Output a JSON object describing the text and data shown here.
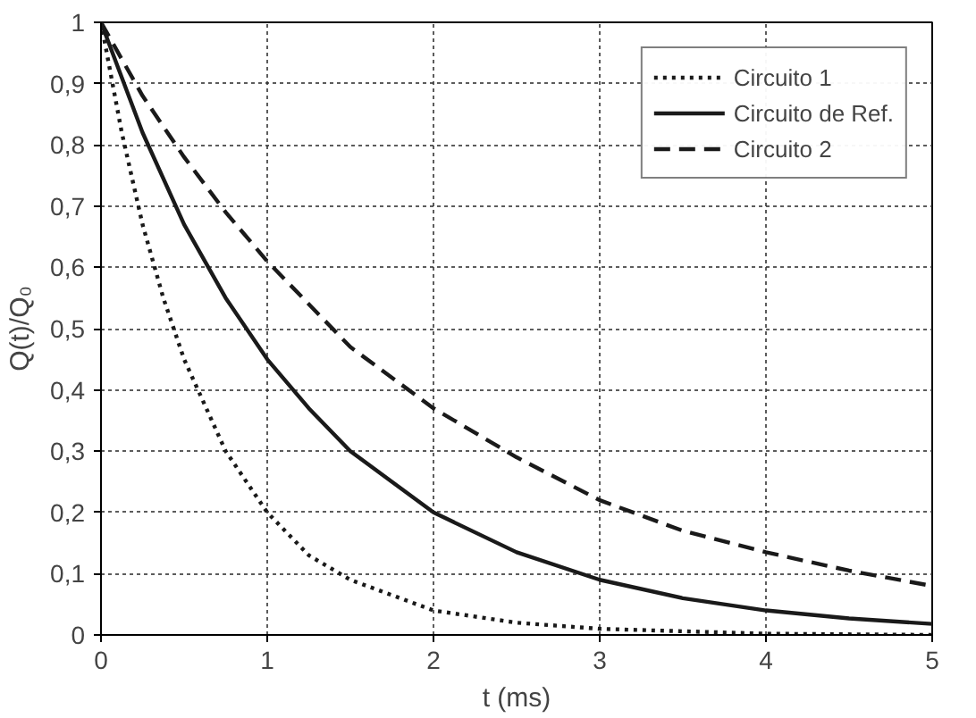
{
  "chart_data": {
    "type": "line",
    "xlabel": "t (ms)",
    "ylabel": "Q(t)/Q₀",
    "xlim": [
      0,
      5
    ],
    "ylim": [
      0,
      1
    ],
    "xticks": [
      0,
      1,
      2,
      3,
      4,
      5
    ],
    "yticks": [
      0,
      {
        "value": 0.1,
        "label": "0,1"
      },
      {
        "value": 0.2,
        "label": "0,2"
      },
      {
        "value": 0.3,
        "label": "0,3"
      },
      {
        "value": 0.4,
        "label": "0,4"
      },
      {
        "value": 0.5,
        "label": "0,5"
      },
      {
        "value": 0.6,
        "label": "0,6"
      },
      {
        "value": 0.7,
        "label": "0,7"
      },
      {
        "value": 0.8,
        "label": "0,8"
      },
      {
        "value": 0.9,
        "label": "0,9"
      },
      1
    ],
    "grid": true,
    "legend": "top right",
    "marker": "none",
    "series": [
      {
        "name": "Circuito 1",
        "color": "#1a1a1a",
        "line_style": "dotted",
        "x": [
          0,
          0.125,
          0.25,
          0.375,
          0.5,
          0.75,
          1,
          1.25,
          1.5,
          2,
          2.5,
          3,
          4,
          5
        ],
        "values": [
          1,
          0.82,
          0.67,
          0.55,
          0.45,
          0.3,
          0.2,
          0.13,
          0.09,
          0.04,
          0.02,
          0.01,
          0.002,
          0
        ]
      },
      {
        "name": "Circuito de Ref.",
        "color": "#1a1a1a",
        "line_style": "solid",
        "x": [
          0,
          0.25,
          0.5,
          0.75,
          1,
          1.25,
          1.5,
          1.75,
          2,
          2.5,
          3,
          3.5,
          4,
          4.5,
          5
        ],
        "values": [
          1,
          0.82,
          0.67,
          0.55,
          0.45,
          0.37,
          0.3,
          0.25,
          0.2,
          0.135,
          0.09,
          0.06,
          0.04,
          0.027,
          0.018
        ]
      },
      {
        "name": "Circuito 2",
        "color": "#1a1a1a",
        "line_style": "dashed",
        "x": [
          0,
          0.25,
          0.5,
          0.75,
          1,
          1.5,
          2,
          2.5,
          3,
          3.5,
          4,
          4.5,
          5
        ],
        "values": [
          1,
          0.88,
          0.78,
          0.69,
          0.61,
          0.47,
          0.37,
          0.29,
          0.22,
          0.17,
          0.135,
          0.105,
          0.08
        ]
      }
    ]
  }
}
